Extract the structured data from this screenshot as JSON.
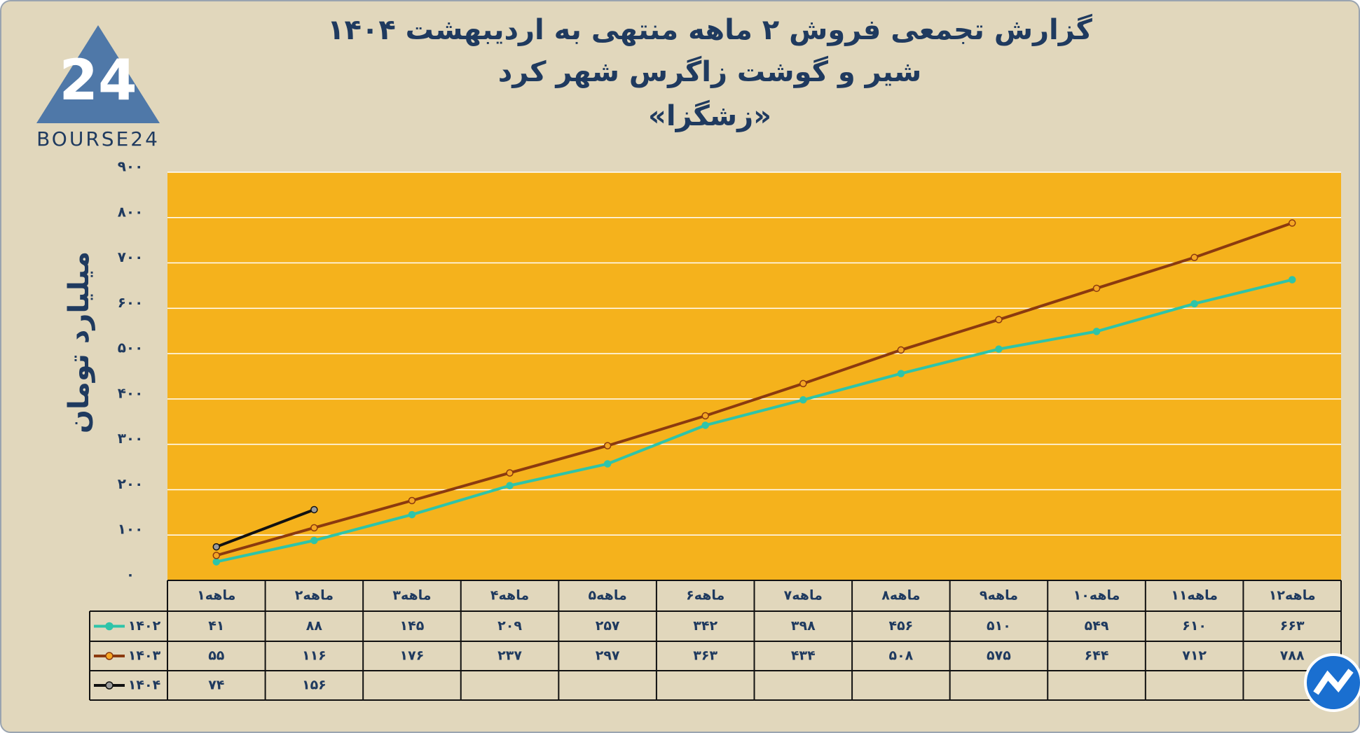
{
  "logo": "BOURSE24",
  "chart_data": {
    "type": "line",
    "title": [
      "گزارش تجمعی فروش ۲ ماهه منتهی به اردیبهشت ۱۴۰۴",
      "شیر و گوشت زاگرس شهر کرد",
      "«زشگزا»"
    ],
    "y_label": "میلیارد تومان",
    "categories": [
      "۱ماهه",
      "۲ماهه",
      "۳ماهه",
      "۴ماهه",
      "۵ماهه",
      "۶ماهه",
      "ماهه۷",
      "ماهه۸",
      "۹ماهه",
      "۱۰ماهه",
      "۱۱ماهه",
      "۱۲ماهه"
    ],
    "ylim": [
      0,
      900
    ],
    "yticks": [
      {
        "value": 0,
        "label": "۰"
      },
      {
        "value": 100,
        "label": "۱۰۰"
      },
      {
        "value": 200,
        "label": "۲۰۰"
      },
      {
        "value": 300,
        "label": "۳۰۰"
      },
      {
        "value": 400,
        "label": "۴۰۰"
      },
      {
        "value": 500,
        "label": "۵۰۰"
      },
      {
        "value": 600,
        "label": "۶۰۰"
      },
      {
        "value": 700,
        "label": "۷۰۰"
      },
      {
        "value": 800,
        "label": "۸۰۰"
      },
      {
        "value": 900,
        "label": "۹۰۰"
      }
    ],
    "grid": true,
    "plot_color": "#f5b21c",
    "series": [
      {
        "name": "۱۴۰۲",
        "color": "#2ec4a9",
        "marker_color": "#2ec4a9",
        "values": [
          41,
          88,
          145,
          209,
          257,
          342,
          398,
          456,
          510,
          549,
          610,
          663
        ],
        "value_labels": [
          "۴۱",
          "۸۸",
          "۱۴۵",
          "۲۰۹",
          "۲۵۷",
          "۳۴۲",
          "۳۹۸",
          "۴۵۶",
          "۵۱۰",
          "۵۴۹",
          "۶۱۰",
          "۶۶۳"
        ]
      },
      {
        "name": "۱۴۰۳",
        "color": "#8b3a0f",
        "marker_color": "#f5a623",
        "values": [
          55,
          116,
          176,
          237,
          297,
          363,
          434,
          508,
          575,
          644,
          712,
          788
        ],
        "value_labels": [
          "۵۵",
          "۱۱۶",
          "۱۷۶",
          "۲۳۷",
          "۲۹۷",
          "۳۶۳",
          "۴۳۴",
          "۵۰۸",
          "۵۷۵",
          "۶۴۴",
          "۷۱۲",
          "۷۸۸"
        ]
      },
      {
        "name": "۱۴۰۴",
        "color": "#111111",
        "marker_color": "#9a9a9a",
        "values": [
          74,
          156,
          null,
          null,
          null,
          null,
          null,
          null,
          null,
          null,
          null,
          null
        ],
        "value_labels": [
          "۷۴",
          "۱۵۶",
          null,
          null,
          null,
          null,
          null,
          null,
          null,
          null,
          null,
          null
        ]
      }
    ]
  }
}
